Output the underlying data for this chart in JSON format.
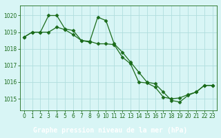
{
  "line1_x": [
    0,
    1,
    2,
    3,
    4,
    5,
    6,
    7,
    8,
    9,
    10,
    11,
    12,
    13,
    14,
    15,
    16,
    17,
    18,
    19,
    20,
    21,
    22,
    23
  ],
  "line1_y": [
    1018.7,
    1019.0,
    1019.0,
    1020.0,
    1020.0,
    1019.2,
    1019.1,
    1018.5,
    1018.4,
    1019.9,
    1019.7,
    1018.3,
    1017.8,
    1017.2,
    1016.6,
    1016.0,
    1015.9,
    1015.4,
    1014.9,
    1014.8,
    1015.2,
    1015.4,
    1015.8,
    1015.8
  ],
  "line2_x": [
    0,
    1,
    2,
    3,
    4,
    5,
    6,
    7,
    8,
    9,
    10,
    11,
    12,
    13,
    14,
    15,
    16,
    17,
    18,
    19,
    20,
    21,
    22,
    23
  ],
  "line2_y": [
    1018.7,
    1019.0,
    1019.0,
    1019.0,
    1019.3,
    1019.15,
    1018.85,
    1018.5,
    1018.45,
    1018.3,
    1018.3,
    1018.25,
    1017.5,
    1017.1,
    1016.0,
    1015.95,
    1015.7,
    1015.1,
    1015.0,
    1015.05,
    1015.25,
    1015.4,
    1015.8,
    1015.8
  ],
  "line_color": "#1a6b1a",
  "bg_color": "#d8f5f5",
  "grid_color": "#b0dede",
  "xlabel": "Graphe pression niveau de la mer (hPa)",
  "ylim": [
    1014.3,
    1020.6
  ],
  "yticks": [
    1015,
    1016,
    1017,
    1018,
    1019,
    1020
  ],
  "xticks": [
    0,
    1,
    2,
    3,
    4,
    5,
    6,
    7,
    8,
    9,
    10,
    11,
    12,
    13,
    14,
    15,
    16,
    17,
    18,
    19,
    20,
    21,
    22,
    23
  ],
  "marker": "D",
  "marker_size": 2.5,
  "line_width": 0.9,
  "xlabel_fontsize": 7,
  "tick_fontsize": 5.5,
  "tick_color": "#1a6b1a",
  "xlabel_color": "white",
  "xlabel_bg": "#1a6b1a"
}
